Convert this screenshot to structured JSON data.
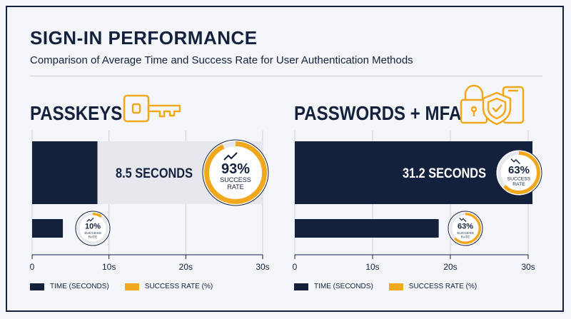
{
  "title": "SIGN-IN PERFORMANCE",
  "subtitle": "Comparison of Average Time and Success Rate for User Authentication Methods",
  "colors": {
    "navy": "#14213d",
    "gold": "#f2a81d",
    "track": "#e6e8ee",
    "grid": "#c9cfda"
  },
  "chart_data": [
    {
      "type": "bar",
      "panel_title": "PASSKEYS",
      "icon": "key-icon",
      "xlim": [
        0,
        30
      ],
      "x_ticks": [
        "0",
        "10s",
        "20s",
        "30s"
      ],
      "grid": true,
      "bars": [
        {
          "time": 8.5,
          "label": "8.5 SECONDS",
          "success_rate": 93,
          "rate_label": "93%",
          "rate_text": [
            "SUCCESS",
            "RATE"
          ],
          "trend": "up"
        },
        {
          "time": 4,
          "label": "",
          "success_rate": 10,
          "rate_label": "10%",
          "rate_text": [
            "SUCCESS",
            "RATE"
          ],
          "trend": "up"
        }
      ],
      "legend": [
        "TIME (SECONDS)",
        "SUCCESS RATE (%)"
      ]
    },
    {
      "type": "bar",
      "panel_title": "PASSWORDS + MFA",
      "icon": "lock-shield-phone-icon",
      "xlim": [
        0,
        30
      ],
      "x_ticks": [
        "0",
        "10s",
        "20s",
        "30s"
      ],
      "grid": true,
      "bars": [
        {
          "time": 31.2,
          "label": "31.2 SECONDS",
          "success_rate": 63,
          "rate_label": "63%",
          "rate_text": [
            "SUCCESS",
            "RATE"
          ],
          "trend": "down"
        },
        {
          "time": 18.5,
          "label": "",
          "success_rate": 63,
          "rate_label": "63%",
          "rate_text": [
            "SUCCESS",
            "RATE"
          ],
          "trend": "down"
        }
      ],
      "legend": [
        "TIME (SECONDS)",
        "SUCCESS RATE (%)"
      ]
    }
  ]
}
